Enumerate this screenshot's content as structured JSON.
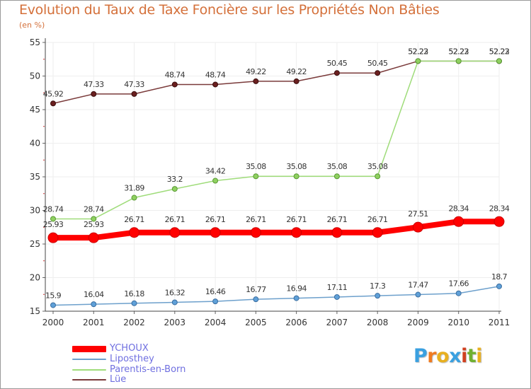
{
  "chart_data": {
    "type": "line",
    "title": "Evolution du Taux de Taxe Foncière sur les Propriétés Non Bâties",
    "subtitle": "(en %)",
    "xlabel": "",
    "ylabel": "(en %)",
    "ylim": [
      15,
      55
    ],
    "yticks": [
      15,
      20,
      25,
      30,
      35,
      40,
      45,
      50,
      55
    ],
    "grid": true,
    "legend_position": "bottom-left",
    "x": [
      "2000",
      "2001",
      "2002",
      "2003",
      "2004",
      "2005",
      "2006",
      "2007",
      "2008",
      "2009",
      "2010",
      "2011"
    ],
    "series": [
      {
        "name": "YCHOUX",
        "color": "#ff0000",
        "values": [
          25.93,
          25.93,
          26.71,
          26.71,
          26.71,
          26.71,
          26.71,
          26.71,
          26.71,
          27.51,
          28.34,
          28.34
        ],
        "labels": [
          "25.93",
          "25.93",
          "26.71",
          "26.71",
          "26.71",
          "26.71",
          "26.71",
          "26.71",
          "26.71",
          "27.51",
          "28.34",
          "28.34"
        ]
      },
      {
        "name": "Liposthey",
        "color": "#6da0cc",
        "values": [
          15.9,
          16.04,
          16.18,
          16.32,
          16.46,
          16.77,
          16.94,
          17.11,
          17.3,
          17.47,
          17.66,
          18.7
        ],
        "labels": [
          "15.9",
          "16.04",
          "16.18",
          "16.32",
          "16.46",
          "16.77",
          "16.94",
          "17.11",
          "17.3",
          "17.47",
          "17.66",
          "18.7"
        ]
      },
      {
        "name": "Parentis-en-Born",
        "color": "#9fdc7a",
        "values": [
          28.74,
          28.74,
          31.89,
          33.2,
          34.42,
          35.08,
          35.08,
          35.08,
          35.08,
          52.23,
          52.23,
          52.23
        ],
        "labels": [
          "28.74",
          "28.74",
          "31.89",
          "33.2",
          "34.42",
          "35.08",
          "35.08",
          "35.08",
          "35.08",
          "52.23",
          "52.23",
          "52.23"
        ]
      },
      {
        "name": "Lüe",
        "color": "#7a3a3a",
        "values": [
          45.92,
          47.33,
          47.33,
          48.74,
          48.74,
          49.22,
          49.22,
          50.45,
          50.45,
          52.22,
          52.22,
          52.22
        ],
        "labels": [
          "45.92",
          "47.33",
          "47.33",
          "48.74",
          "48.74",
          "49.22",
          "49.22",
          "50.45",
          "50.45",
          "52.22",
          "52.22",
          "52.22"
        ]
      }
    ]
  },
  "logo": {
    "letters": [
      "P",
      "r",
      "o",
      "x",
      "i",
      "t",
      "i"
    ],
    "colors": [
      "#3aa0e0",
      "#f07b20",
      "#e8b020",
      "#3aa0e0",
      "#d04020",
      "#70b030",
      "#e8b020"
    ]
  }
}
